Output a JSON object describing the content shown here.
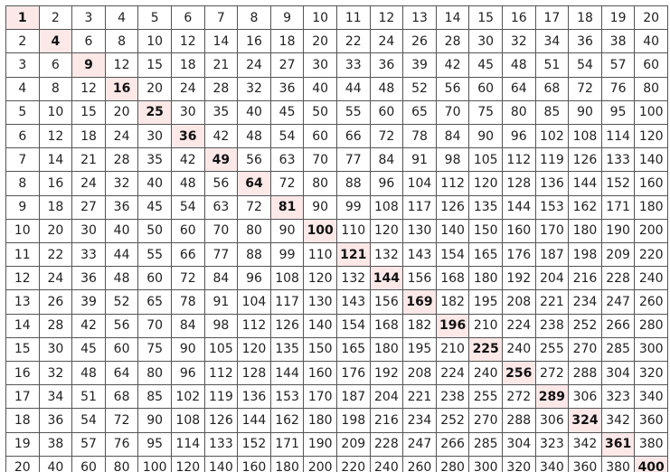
{
  "table": {
    "rows": [
      [
        1,
        2,
        3,
        4,
        5,
        6,
        7,
        8,
        9,
        10,
        11,
        12,
        13,
        14,
        15,
        16,
        17,
        18,
        19,
        20
      ],
      [
        2,
        4,
        6,
        8,
        10,
        12,
        14,
        16,
        18,
        20,
        22,
        24,
        26,
        28,
        30,
        32,
        34,
        36,
        38,
        40
      ],
      [
        3,
        6,
        9,
        12,
        15,
        18,
        21,
        24,
        27,
        30,
        33,
        36,
        39,
        42,
        45,
        48,
        51,
        54,
        57,
        60
      ],
      [
        4,
        8,
        12,
        16,
        20,
        24,
        28,
        32,
        36,
        40,
        44,
        48,
        52,
        56,
        60,
        64,
        68,
        72,
        76,
        80
      ],
      [
        5,
        10,
        15,
        20,
        25,
        30,
        35,
        40,
        45,
        50,
        55,
        60,
        65,
        70,
        75,
        80,
        85,
        90,
        95,
        100
      ],
      [
        6,
        12,
        18,
        24,
        30,
        36,
        42,
        48,
        54,
        60,
        66,
        72,
        78,
        84,
        90,
        96,
        102,
        108,
        114,
        120
      ],
      [
        7,
        14,
        21,
        28,
        35,
        42,
        49,
        56,
        63,
        70,
        77,
        84,
        91,
        98,
        105,
        112,
        119,
        126,
        133,
        140
      ],
      [
        8,
        16,
        24,
        32,
        40,
        48,
        56,
        64,
        72,
        80,
        88,
        96,
        104,
        112,
        120,
        128,
        136,
        144,
        152,
        160
      ],
      [
        9,
        18,
        27,
        36,
        45,
        54,
        63,
        72,
        81,
        90,
        99,
        108,
        117,
        126,
        135,
        144,
        153,
        162,
        171,
        180
      ],
      [
        10,
        20,
        30,
        40,
        50,
        60,
        70,
        80,
        90,
        100,
        110,
        120,
        130,
        140,
        150,
        160,
        170,
        180,
        190,
        200
      ],
      [
        11,
        22,
        33,
        44,
        55,
        66,
        77,
        88,
        99,
        110,
        121,
        132,
        143,
        154,
        165,
        176,
        187,
        198,
        209,
        220
      ],
      [
        12,
        24,
        36,
        48,
        60,
        72,
        84,
        96,
        108,
        120,
        132,
        144,
        156,
        168,
        180,
        192,
        204,
        216,
        228,
        240
      ],
      [
        13,
        26,
        39,
        52,
        65,
        78,
        91,
        104,
        117,
        130,
        143,
        156,
        169,
        182,
        195,
        208,
        221,
        234,
        247,
        260
      ],
      [
        14,
        28,
        42,
        56,
        70,
        84,
        98,
        112,
        126,
        140,
        154,
        168,
        182,
        196,
        210,
        224,
        238,
        252,
        266,
        280
      ],
      [
        15,
        30,
        45,
        60,
        75,
        90,
        105,
        120,
        135,
        150,
        165,
        180,
        195,
        210,
        225,
        240,
        255,
        270,
        285,
        300
      ],
      [
        16,
        32,
        48,
        64,
        80,
        96,
        112,
        128,
        144,
        160,
        176,
        192,
        208,
        224,
        240,
        256,
        272,
        288,
        304,
        320
      ],
      [
        17,
        34,
        51,
        68,
        85,
        102,
        119,
        136,
        153,
        170,
        187,
        204,
        221,
        238,
        255,
        272,
        289,
        306,
        323,
        340
      ],
      [
        18,
        36,
        54,
        72,
        90,
        108,
        126,
        144,
        162,
        180,
        198,
        216,
        234,
        252,
        270,
        288,
        306,
        324,
        342,
        360
      ],
      [
        19,
        38,
        57,
        76,
        95,
        114,
        133,
        152,
        171,
        190,
        209,
        228,
        247,
        266,
        285,
        304,
        323,
        342,
        361,
        380
      ],
      [
        20,
        40,
        60,
        80,
        100,
        120,
        140,
        160,
        180,
        200,
        220,
        240,
        260,
        280,
        300,
        320,
        340,
        360,
        380,
        400
      ]
    ]
  }
}
